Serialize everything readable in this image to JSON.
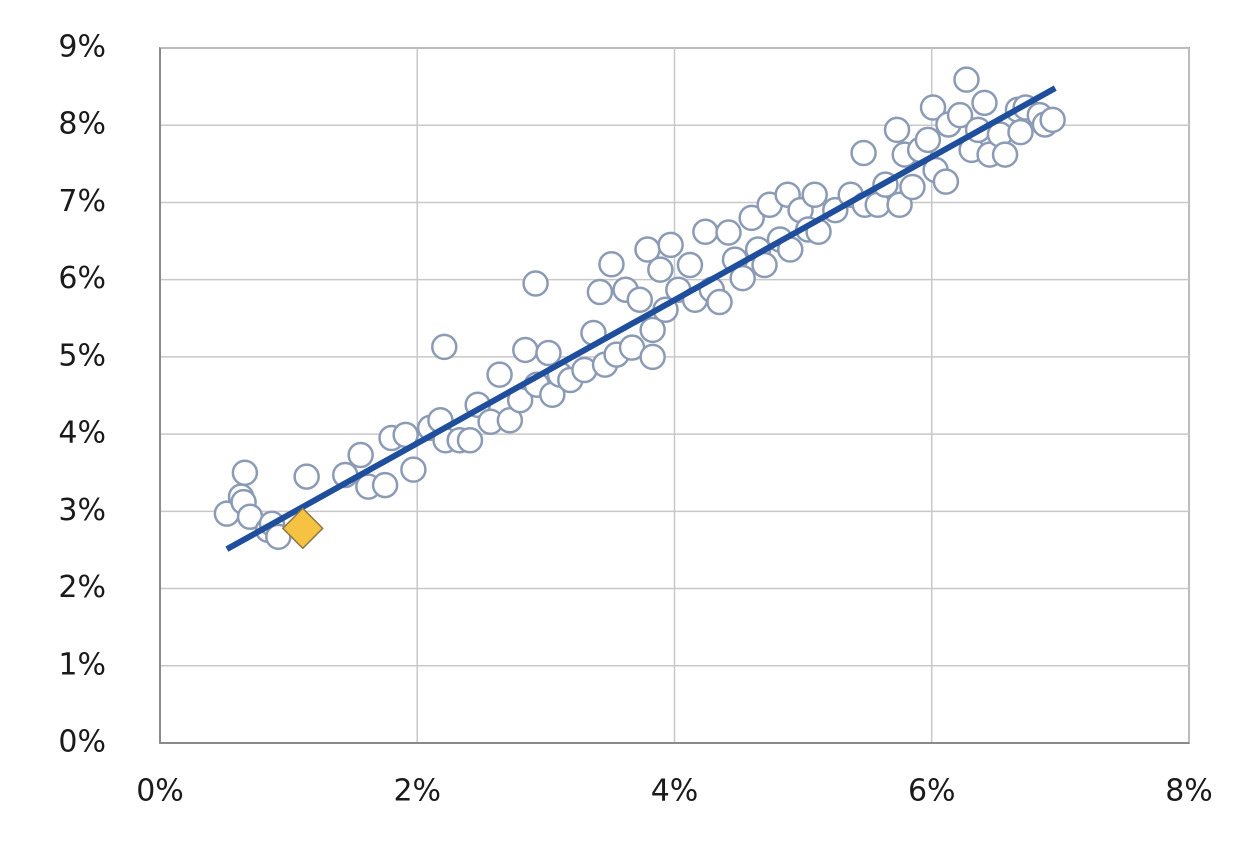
{
  "chart_data": {
    "type": "scatter",
    "xlim": [
      0,
      8
    ],
    "ylim": [
      0,
      9
    ],
    "xticks": [
      {
        "value": 0,
        "label": "0%"
      },
      {
        "value": 2,
        "label": "2%"
      },
      {
        "value": 4,
        "label": "4%"
      },
      {
        "value": 6,
        "label": "6%"
      },
      {
        "value": 8,
        "label": "8%"
      }
    ],
    "yticks": [
      {
        "value": 0,
        "label": "0%"
      },
      {
        "value": 1,
        "label": "1%"
      },
      {
        "value": 2,
        "label": "2%"
      },
      {
        "value": 3,
        "label": "3%"
      },
      {
        "value": 4,
        "label": "4%"
      },
      {
        "value": 5,
        "label": "5%"
      },
      {
        "value": 6,
        "label": "6%"
      },
      {
        "value": 7,
        "label": "7%"
      },
      {
        "value": 8,
        "label": "8%"
      },
      {
        "value": 9,
        "label": "9%"
      }
    ],
    "grid": true,
    "series": [
      {
        "mode": "markers",
        "marker": "circle",
        "color": "#8c9bb5",
        "fill": "#ffffff",
        "x": [
          0.52,
          0.63,
          0.66,
          0.65,
          0.7,
          0.84,
          0.87,
          0.92,
          1.14,
          1.44,
          1.56,
          1.62,
          1.75,
          1.8,
          1.91,
          1.97,
          2.1,
          2.18,
          2.21,
          2.22,
          2.33,
          2.41,
          2.47,
          2.57,
          2.64,
          2.72,
          2.8,
          2.84,
          2.92,
          2.93,
          3.02,
          3.05,
          3.11,
          3.19,
          3.3,
          3.37,
          3.42,
          3.46,
          3.51,
          3.55,
          3.62,
          3.67,
          3.73,
          3.79,
          3.83,
          3.83,
          3.89,
          3.93,
          3.97,
          4.03,
          4.12,
          4.16,
          4.24,
          4.29,
          4.35,
          4.42,
          4.47,
          4.53,
          4.6,
          4.65,
          4.7,
          4.74,
          4.82,
          4.88,
          4.9,
          4.98,
          5.04,
          5.09,
          5.12,
          5.25,
          5.37,
          5.47,
          5.48,
          5.58,
          5.64,
          5.73,
          5.75,
          5.79,
          5.85,
          5.91,
          5.97,
          6.01,
          6.03,
          6.11,
          6.13,
          6.22,
          6.27,
          6.31,
          6.36,
          6.41,
          6.45,
          6.53,
          6.57,
          6.67,
          6.69,
          6.73,
          6.84,
          6.88,
          6.94
        ],
        "y": [
          2.97,
          3.19,
          3.5,
          3.12,
          2.93,
          2.76,
          2.84,
          2.67,
          3.45,
          3.47,
          3.73,
          3.32,
          3.34,
          3.95,
          3.99,
          3.54,
          4.08,
          4.18,
          5.13,
          3.92,
          3.92,
          3.92,
          4.38,
          4.16,
          4.77,
          4.18,
          4.44,
          5.09,
          5.95,
          4.64,
          5.05,
          4.51,
          4.77,
          4.7,
          4.83,
          5.31,
          5.84,
          4.9,
          6.2,
          5.03,
          5.87,
          5.12,
          5.74,
          6.39,
          5.35,
          5.0,
          6.13,
          5.61,
          6.45,
          5.87,
          6.19,
          5.74,
          6.62,
          5.87,
          5.71,
          6.61,
          6.26,
          6.02,
          6.8,
          6.39,
          6.19,
          6.97,
          6.52,
          7.1,
          6.39,
          6.9,
          6.65,
          7.1,
          6.62,
          6.9,
          7.1,
          7.64,
          6.97,
          6.97,
          7.23,
          7.94,
          6.97,
          7.62,
          7.2,
          7.68,
          7.81,
          8.23,
          7.42,
          7.27,
          8.01,
          8.13,
          8.59,
          7.68,
          7.94,
          8.29,
          7.62,
          7.88,
          7.62,
          8.2,
          7.91,
          8.23,
          8.13,
          8.01,
          8.07
        ]
      },
      {
        "mode": "line",
        "color": "#1f4e9c",
        "x": [
          0.52,
          6.96
        ],
        "y": [
          2.51,
          8.48
        ]
      },
      {
        "mode": "markers",
        "marker": "diamond",
        "color": "#8a7a4a",
        "fill": "#f5c242",
        "x": [
          1.11
        ],
        "y": [
          2.78
        ]
      }
    ]
  }
}
